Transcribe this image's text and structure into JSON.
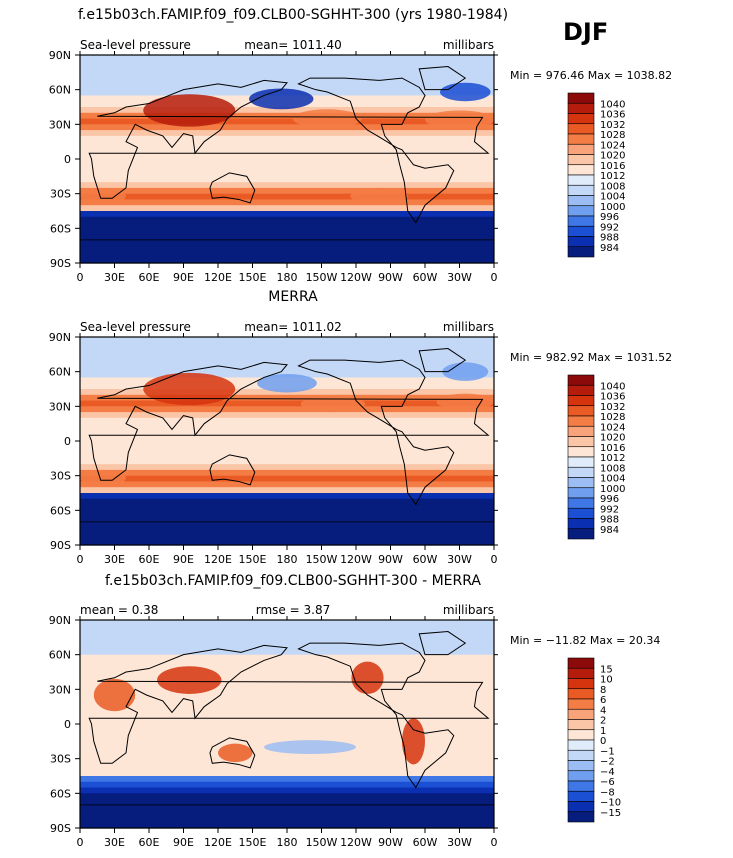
{
  "season_label": "DJF",
  "chart_data": [
    {
      "type": "heatmap",
      "title": "f.e15b03ch.FAMIP.f09_f09.CLB00-SGHHT-300 (yrs 1980-1984)",
      "field_label": "Sea-level pressure",
      "stat_label": "mean= 1011.40",
      "units": "millibars",
      "minmax_label": "Min = 976.46 Max = 1038.82",
      "min": 976.46,
      "max": 1038.82,
      "mean": 1011.4,
      "x_ticks": [
        "0",
        "30E",
        "60E",
        "90E",
        "120E",
        "150E",
        "180",
        "150W",
        "120W",
        "90W",
        "60W",
        "30W",
        "0"
      ],
      "y_ticks": [
        "90N",
        "60N",
        "30N",
        "0",
        "30S",
        "60S",
        "90S"
      ],
      "colorbar_levels": [
        "1040",
        "1036",
        "1032",
        "1028",
        "1024",
        "1020",
        "1016",
        "1012",
        "1008",
        "1004",
        "1000",
        "996",
        "992",
        "988",
        "984"
      ],
      "colorbar_colors": [
        "#8c0a0a",
        "#b51c0b",
        "#d6340f",
        "#ea5a24",
        "#f47d45",
        "#f8a37a",
        "#fbc6a8",
        "#fde6d6",
        "#e1ecfb",
        "#c3d7f7",
        "#9cbdf3",
        "#709ff0",
        "#3f77e6",
        "#1b4fd4",
        "#0a2fb0",
        "#061d7d"
      ]
    },
    {
      "type": "heatmap",
      "title": "MERRA",
      "field_label": "Sea-level pressure",
      "stat_label": "mean= 1011.02",
      "units": "millibars",
      "minmax_label": "Min = 982.92 Max = 1031.52",
      "min": 982.92,
      "max": 1031.52,
      "mean": 1011.02,
      "x_ticks": [
        "0",
        "30E",
        "60E",
        "90E",
        "120E",
        "150E",
        "180",
        "150W",
        "120W",
        "90W",
        "60W",
        "30W",
        "0"
      ],
      "y_ticks": [
        "90N",
        "60N",
        "30N",
        "0",
        "30S",
        "60S",
        "90S"
      ],
      "colorbar_levels": [
        "1040",
        "1036",
        "1032",
        "1028",
        "1024",
        "1020",
        "1016",
        "1012",
        "1008",
        "1004",
        "1000",
        "996",
        "992",
        "988",
        "984"
      ],
      "colorbar_colors": [
        "#8c0a0a",
        "#b51c0b",
        "#d6340f",
        "#ea5a24",
        "#f47d45",
        "#f8a37a",
        "#fbc6a8",
        "#fde6d6",
        "#e1ecfb",
        "#c3d7f7",
        "#9cbdf3",
        "#709ff0",
        "#3f77e6",
        "#1b4fd4",
        "#0a2fb0",
        "#061d7d"
      ]
    },
    {
      "type": "heatmap",
      "title": "f.e15b03ch.FAMIP.f09_f09.CLB00-SGHHT-300 - MERRA",
      "field_label": "mean =    0.38",
      "stat_label": "rmse =    3.87",
      "units": "millibars",
      "minmax_label": "Min = −11.82 Max =   20.34",
      "min": -11.82,
      "max": 20.34,
      "mean": 0.38,
      "rmse": 3.87,
      "x_ticks": [
        "0",
        "30E",
        "60E",
        "90E",
        "120E",
        "150E",
        "180",
        "150W",
        "120W",
        "90W",
        "60W",
        "30W",
        "0"
      ],
      "y_ticks": [
        "90N",
        "60N",
        "30N",
        "0",
        "30S",
        "60S",
        "90S"
      ],
      "colorbar_levels": [
        "15",
        "10",
        "8",
        "6",
        "4",
        "2",
        "1",
        "0",
        "−1",
        "−2",
        "−4",
        "−6",
        "−8",
        "−10",
        "−15"
      ],
      "colorbar_colors": [
        "#8c0a0a",
        "#b51c0b",
        "#d6340f",
        "#ea5a24",
        "#f47d45",
        "#f8a37a",
        "#fbc6a8",
        "#fde6d6",
        "#e1ecfb",
        "#c3d7f7",
        "#9cbdf3",
        "#709ff0",
        "#3f77e6",
        "#1b4fd4",
        "#0a2fb0",
        "#061d7d"
      ]
    }
  ]
}
